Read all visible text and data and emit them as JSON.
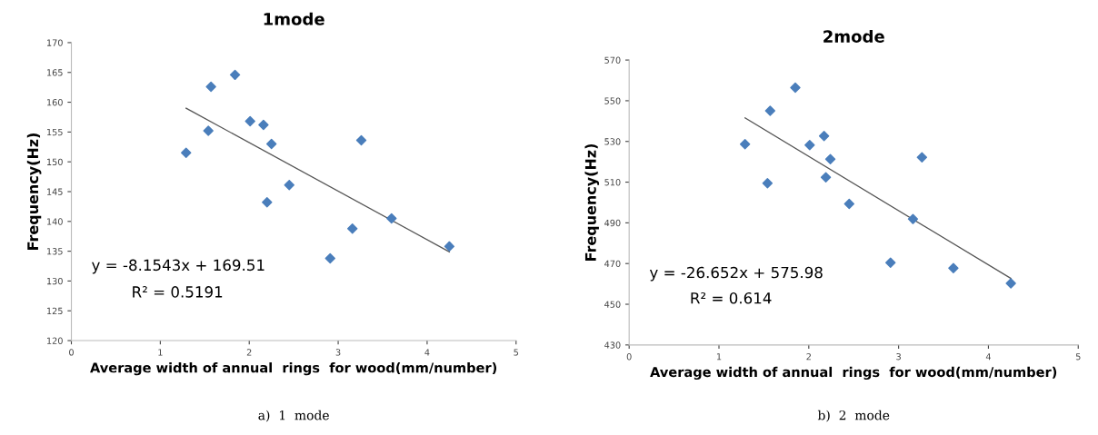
{
  "chart_data": [
    {
      "type": "scatter",
      "title": "1mode",
      "xlabel": "Average width of annual  rings  for wood(mm/number)",
      "ylabel": "Frequency(Hz)",
      "grid": false,
      "legend": false,
      "xlim": [
        0,
        5
      ],
      "xticks": [
        0,
        1,
        2,
        3,
        4,
        5
      ],
      "ylim": [
        120,
        170
      ],
      "yticks": [
        120,
        125,
        130,
        135,
        140,
        145,
        150,
        155,
        160,
        165,
        170
      ],
      "series": [
        {
          "marker": "diamond",
          "color": "#4a7ebb",
          "x": [
            1.29,
            1.54,
            1.57,
            1.84,
            2.01,
            2.16,
            2.25,
            2.2,
            2.45,
            2.91,
            3.16,
            3.26,
            3.6,
            4.25
          ],
          "values": [
            151.5,
            155.2,
            162.6,
            164.6,
            156.8,
            156.2,
            153.0,
            143.2,
            146.1,
            133.8,
            138.8,
            153.6,
            140.5,
            135.8
          ]
        },
        {
          "type": "line",
          "color": "#555555",
          "x": [
            1.29,
            4.25
          ],
          "values": [
            159.0,
            134.9
          ]
        }
      ],
      "annotations": [
        "y = -8.1543x + 169.51",
        "R² = 0.5191",
        "a)  1  mode"
      ]
    },
    {
      "type": "scatter",
      "title": "2mode",
      "xlabel": "Average width of annual  rings  for wood(mm/number)",
      "ylabel": "Frequency(Hz)",
      "grid": false,
      "legend": false,
      "xlim": [
        0,
        5
      ],
      "xticks": [
        0,
        1,
        2,
        3,
        4,
        5
      ],
      "ylim": [
        430,
        570
      ],
      "yticks": [
        430,
        450,
        470,
        490,
        510,
        530,
        550,
        570
      ],
      "series": [
        {
          "marker": "diamond",
          "color": "#4a7ebb",
          "x": [
            1.29,
            1.54,
            1.57,
            1.85,
            2.01,
            2.17,
            2.24,
            2.19,
            2.45,
            2.91,
            3.16,
            3.26,
            3.61,
            4.25
          ],
          "values": [
            528.7,
            509.5,
            545.1,
            556.4,
            528.2,
            532.7,
            521.3,
            512.4,
            499.3,
            470.4,
            491.9,
            522.2,
            467.8,
            460.3
          ]
        },
        {
          "type": "line",
          "color": "#555555",
          "x": [
            1.29,
            4.25
          ],
          "values": [
            541.6,
            462.7
          ]
        }
      ],
      "annotations": [
        "y = -26.652x + 575.98",
        "R² = 0.614",
        "b)  2  mode"
      ]
    }
  ]
}
